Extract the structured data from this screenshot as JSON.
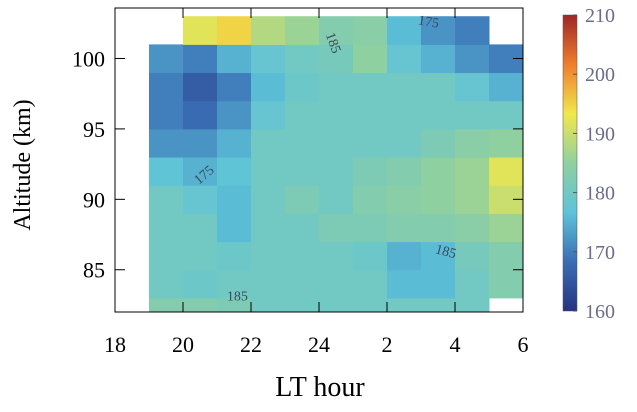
{
  "chart_data": {
    "type": "contour",
    "x_label": "LT hour",
    "y_label": "Altitude (km)",
    "xlim": [
      18,
      30
    ],
    "xticks": [
      18,
      20,
      22,
      24,
      {
        "value": 26,
        "label": "2"
      },
      {
        "value": 28,
        "label": "4"
      },
      {
        "value": 30,
        "label": "6"
      }
    ],
    "ylim": [
      82,
      103.3
    ],
    "yticks": [
      85,
      90,
      95,
      100
    ],
    "x": [
      19.5,
      20.5,
      21.5,
      22.5,
      23.5,
      24.5,
      25.5,
      26.5,
      27.5,
      28.5,
      29.5
    ],
    "y": [
      82,
      84,
      86,
      88,
      90,
      92,
      94,
      96,
      98,
      100,
      102
    ],
    "z": [
      [
        183,
        183,
        182,
        180,
        180,
        180,
        180,
        180,
        180,
        180,
        null
      ],
      [
        180,
        179,
        180,
        180,
        180,
        180,
        180,
        176,
        176,
        180,
        183
      ],
      [
        180,
        180,
        179,
        180,
        180,
        180,
        179,
        175,
        176,
        181,
        183
      ],
      [
        180,
        180,
        176,
        180,
        180,
        182,
        182,
        183,
        183,
        184,
        186
      ],
      [
        180,
        178,
        176,
        180,
        182,
        180,
        183,
        184,
        185,
        186,
        190
      ],
      [
        177,
        175,
        177,
        180,
        180,
        180,
        182,
        183,
        185,
        186,
        192
      ],
      [
        172,
        172,
        175,
        180,
        180,
        180,
        180,
        180,
        182,
        184,
        185
      ],
      [
        170,
        168,
        172,
        178,
        180,
        180,
        180,
        180,
        180,
        180,
        180
      ],
      [
        170,
        166,
        170,
        176,
        179,
        180,
        180,
        180,
        180,
        178,
        175
      ],
      [
        172,
        170,
        175,
        178,
        180,
        181,
        185,
        178,
        175,
        172,
        170
      ],
      [
        null,
        192,
        195,
        188,
        186,
        183,
        184,
        176,
        172,
        170,
        null
      ]
    ],
    "contour_labels": [
      175,
      175,
      185,
      185,
      185
    ],
    "clim": [
      160,
      210
    ],
    "cticks": [
      160,
      170,
      180,
      190,
      200,
      210
    ],
    "colormap": [
      "#26337f",
      "#3a6db5",
      "#5ec3d9",
      "#8fd0a0",
      "#f1e84c",
      "#ef7d2d",
      "#9e2628"
    ]
  }
}
